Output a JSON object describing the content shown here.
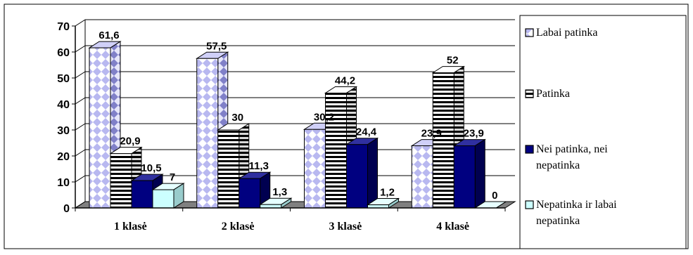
{
  "chart_data": {
    "type": "bar",
    "style": "3d-clustered-column",
    "categories": [
      "1 klasė",
      "2 klasė",
      "3 klasė",
      "4 klasė"
    ],
    "series": [
      {
        "name": "Labai patinka",
        "values": [
          61.6,
          57.5,
          30.2,
          23.9
        ],
        "labels": [
          "61,6",
          "57,5",
          "30,2",
          "23,9"
        ],
        "color": "#b8b8f0",
        "pattern": "diamond"
      },
      {
        "name": "Patinka",
        "values": [
          20.9,
          30,
          44.2,
          52
        ],
        "labels": [
          "20,9",
          "30",
          "44,2",
          "52"
        ],
        "color": "#ffffff",
        "pattern": "horizontal-stripes"
      },
      {
        "name": "Nei patinka, nei nepatinka",
        "values": [
          10.5,
          11.3,
          24.4,
          23.9
        ],
        "labels": [
          "10,5",
          "11,3",
          "24,4",
          "23,9"
        ],
        "color": "#000080",
        "pattern": "solid"
      },
      {
        "name": "Nepatinka ir labai nepatinka",
        "values": [
          7,
          1.3,
          1.2,
          0
        ],
        "labels": [
          "7",
          "1,3",
          "1,2",
          "0"
        ],
        "color": "#ccffff",
        "pattern": "solid"
      }
    ],
    "y_ticks": [
      "0",
      "10",
      "20",
      "30",
      "40",
      "50",
      "60",
      "70"
    ],
    "ylim": [
      0,
      70
    ],
    "grid": true,
    "legend_position": "right"
  }
}
